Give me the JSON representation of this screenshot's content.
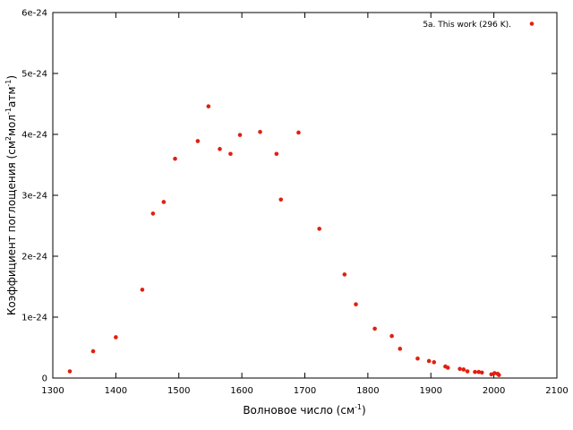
{
  "chart_data": {
    "type": "scatter",
    "title": "",
    "xlabel": {
      "base": "Волновое число (см",
      "sup": "-1",
      "tail": ")"
    },
    "ylabel": {
      "parts": [
        {
          "t": "Коэффициент поглощения (см",
          "sup": false
        },
        {
          "t": "2",
          "sup": true
        },
        {
          "t": "мол",
          "sup": false
        },
        {
          "t": "-1",
          "sup": true
        },
        {
          "t": "атм",
          "sup": false
        },
        {
          "t": "-1",
          "sup": true
        },
        {
          "t": ")",
          "sup": false
        }
      ]
    },
    "xlim": [
      1300,
      2100
    ],
    "ylim": [
      0,
      6e-24
    ],
    "xticks": [
      1300,
      1400,
      1500,
      1600,
      1700,
      1800,
      1900,
      2000,
      2100
    ],
    "xtick_labels": [
      "1300",
      "1400",
      "1500",
      "1600",
      "1700",
      "1800",
      "1900",
      "2000",
      "2100"
    ],
    "yticks": [
      0,
      1e-24,
      2e-24,
      3e-24,
      4e-24,
      5e-24,
      6e-24
    ],
    "ytick_labels": [
      "0",
      "1e-24",
      "2e-24",
      "3e-24",
      "4e-24",
      "5e-24",
      "6e-24"
    ],
    "grid": false,
    "legend_position": "top-right",
    "series": [
      {
        "name": "5a. This work (296 K).",
        "color": "#e02010",
        "x": [
          1327,
          1364,
          1400,
          1442,
          1459,
          1476,
          1494,
          1530,
          1547,
          1565,
          1582,
          1597,
          1629,
          1655,
          1662,
          1690,
          1723,
          1763,
          1781,
          1811,
          1838,
          1851,
          1879,
          1897,
          1905,
          1923,
          1927,
          1946,
          1952,
          1958,
          1970,
          1976,
          1981,
          1996,
          2001,
          2006,
          2008
        ],
        "y": [
          1.1e-25,
          4.4e-25,
          6.7e-25,
          1.45e-24,
          2.7e-24,
          2.89e-24,
          3.6e-24,
          3.89e-24,
          4.46e-24,
          3.76e-24,
          3.68e-24,
          3.99e-24,
          4.04e-24,
          3.68e-24,
          2.93e-24,
          4.03e-24,
          2.45e-24,
          1.7e-24,
          1.21e-24,
          8.1e-25,
          6.9e-25,
          4.8e-25,
          3.2e-25,
          2.8e-25,
          2.6e-25,
          1.9e-25,
          1.7e-25,
          1.5e-25,
          1.4e-25,
          1.1e-25,
          1e-25,
          1e-25,
          9e-26,
          6e-26,
          8e-26,
          7e-26,
          5e-26
        ]
      }
    ]
  }
}
